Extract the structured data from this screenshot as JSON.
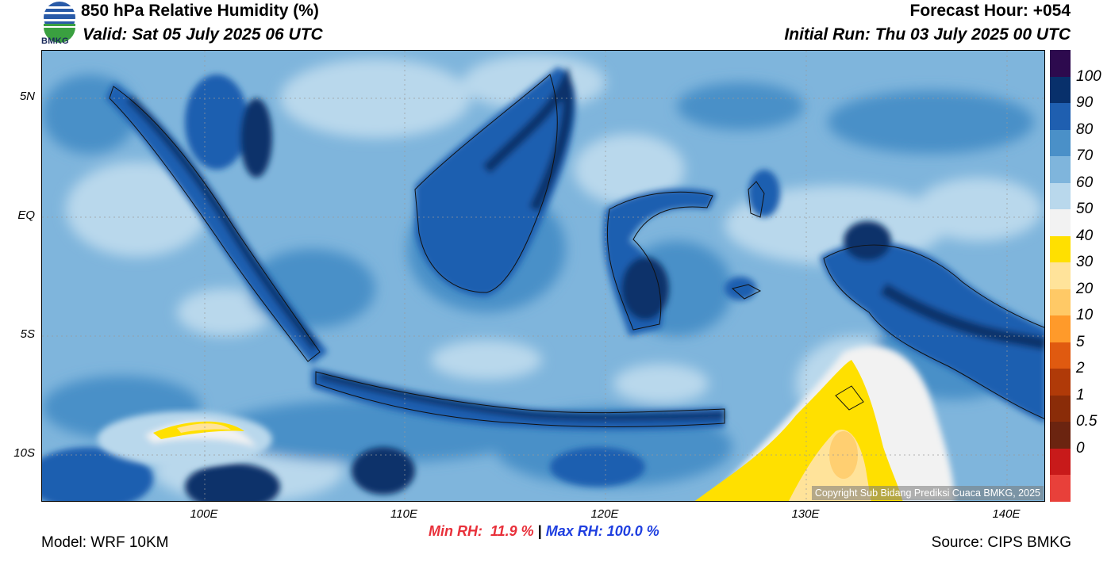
{
  "header": {
    "title": "850 hPa Relative Humidity (%)",
    "valid": "Valid: Sat 05 July 2025 06 UTC",
    "forecast_hour": "Forecast Hour: +054",
    "initial_run": "Initial Run: Thu 03 July 2025 00 UTC",
    "logo_text": "BMKG"
  },
  "axes": {
    "lat_labels": [
      "5N",
      "EQ",
      "5S",
      "10S"
    ],
    "lon_labels": [
      "100E",
      "110E",
      "120E",
      "130E",
      "140E"
    ]
  },
  "stats": {
    "min_rh": "Min RH:  11.9 %",
    "separator": " | ",
    "max_rh": "Max RH: 100.0 %"
  },
  "footer": {
    "model": "Model: WRF 10KM",
    "source": "Source: CIPS BMKG",
    "copyright": "Copyright Sub Bidang Prediksi Cuaca BMKG, 2025"
  },
  "colorbar": {
    "labels": [
      "100",
      "90",
      "80",
      "70",
      "60",
      "50",
      "40",
      "30",
      "20",
      "10",
      "5",
      "2",
      "1",
      "0.5",
      "0"
    ],
    "colors": [
      "#2d0a4e",
      "#08306b",
      "#1f5fb0",
      "#4a90c8",
      "#7fb5dc",
      "#b9d8ec",
      "#f2f2f2",
      "#ffe000",
      "#ffe39a",
      "#ffc966",
      "#ff9a2a",
      "#e05a10",
      "#b03a08",
      "#8a2c08",
      "#6b2410",
      "#c81a1a",
      "#e8403a"
    ]
  }
}
